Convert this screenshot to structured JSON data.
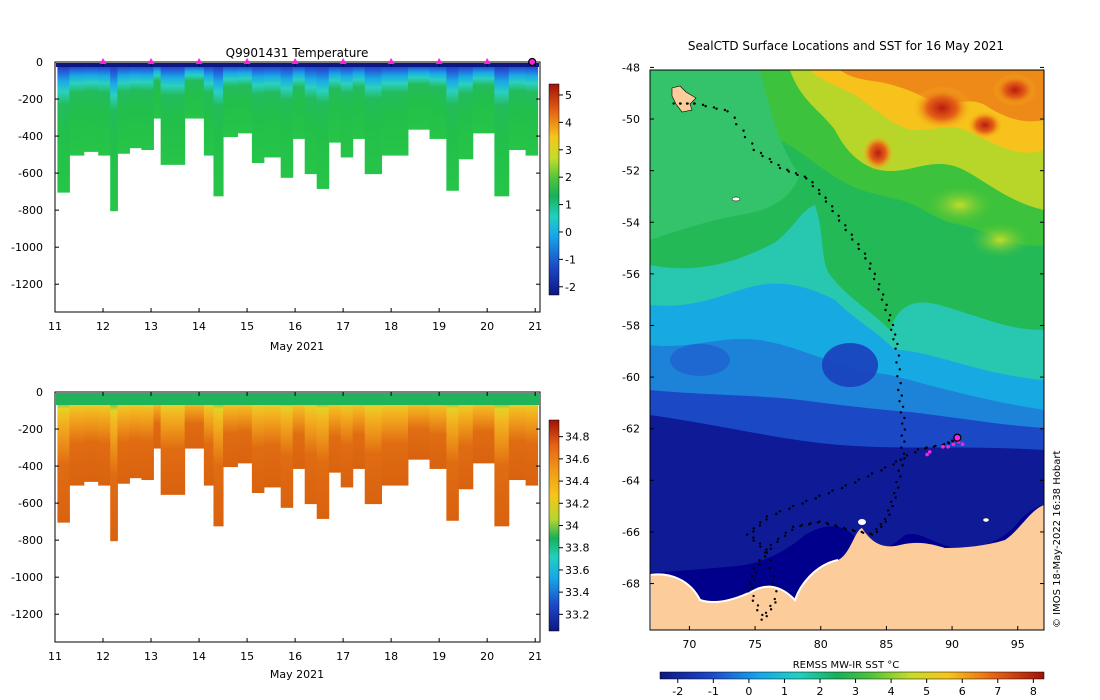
{
  "chart_data": [
    {
      "type": "heatmap",
      "title": "Q9901431  Temperature",
      "xlabel": "May 2021",
      "xticks": [
        "11",
        "12",
        "13",
        "14",
        "15",
        "16",
        "17",
        "18",
        "19",
        "20",
        "21"
      ],
      "xlim": [
        11,
        21.1
      ],
      "ylim": [
        0,
        -1350
      ],
      "yticks": [
        "0",
        "-200",
        "-400",
        "-600",
        "-800",
        "-1000",
        "-1200"
      ],
      "colorbar": {
        "ticks": [
          "5",
          "4",
          "3",
          "2",
          "1",
          "0",
          "-1",
          "-2"
        ],
        "range": [
          -2.3,
          5.4
        ]
      },
      "profile_markers_day": [
        12,
        13,
        14,
        15,
        16,
        17,
        18,
        19,
        20,
        21
      ],
      "profiles": [
        {
          "t": 11.05,
          "depth": 700
        },
        {
          "t": 11.3,
          "depth": 500
        },
        {
          "t": 11.6,
          "depth": 480
        },
        {
          "t": 11.9,
          "depth": 500
        },
        {
          "t": 12.15,
          "depth": 800
        },
        {
          "t": 12.3,
          "depth": 490
        },
        {
          "t": 12.55,
          "depth": 460
        },
        {
          "t": 12.8,
          "depth": 470
        },
        {
          "t": 13.05,
          "depth": 300
        },
        {
          "t": 13.2,
          "depth": 550
        },
        {
          "t": 13.7,
          "depth": 300
        },
        {
          "t": 14.1,
          "depth": 500
        },
        {
          "t": 14.3,
          "depth": 720
        },
        {
          "t": 14.5,
          "depth": 400
        },
        {
          "t": 14.8,
          "depth": 380
        },
        {
          "t": 15.1,
          "depth": 540
        },
        {
          "t": 15.35,
          "depth": 510
        },
        {
          "t": 15.7,
          "depth": 620
        },
        {
          "t": 15.95,
          "depth": 410
        },
        {
          "t": 16.2,
          "depth": 600
        },
        {
          "t": 16.45,
          "depth": 680
        },
        {
          "t": 16.7,
          "depth": 430
        },
        {
          "t": 16.95,
          "depth": 510
        },
        {
          "t": 17.2,
          "depth": 410
        },
        {
          "t": 17.45,
          "depth": 600
        },
        {
          "t": 17.8,
          "depth": 500
        },
        {
          "t": 18.35,
          "depth": 360
        },
        {
          "t": 18.8,
          "depth": 410
        },
        {
          "t": 19.15,
          "depth": 690
        },
        {
          "t": 19.4,
          "depth": 520
        },
        {
          "t": 19.7,
          "depth": 380
        },
        {
          "t": 20.15,
          "depth": 720
        },
        {
          "t": 20.45,
          "depth": 470
        },
        {
          "t": 20.8,
          "depth": 500
        }
      ]
    },
    {
      "type": "heatmap",
      "title": "",
      "xlabel": "May 2021",
      "xticks": [
        "11",
        "12",
        "13",
        "14",
        "15",
        "16",
        "17",
        "18",
        "19",
        "20",
        "21"
      ],
      "xlim": [
        11,
        21.1
      ],
      "ylim": [
        0,
        -1350
      ],
      "yticks": [
        "0",
        "-200",
        "-400",
        "-600",
        "-800",
        "-1000",
        "-1200"
      ],
      "colorbar": {
        "ticks": [
          "34.8",
          "34.6",
          "34.4",
          "34.2",
          "34",
          "33.8",
          "33.6",
          "33.4",
          "33.2"
        ],
        "range": [
          33.05,
          34.95
        ]
      }
    },
    {
      "type": "heatmap",
      "title": "SealCTD Surface Locations and SST for 16 May 2021",
      "xticks": [
        "70",
        "75",
        "80",
        "85",
        "90",
        "95"
      ],
      "xlim": [
        67,
        97
      ],
      "yticks": [
        "-48",
        "-50",
        "-52",
        "-54",
        "-56",
        "-58",
        "-60",
        "-62",
        "-64",
        "-66",
        "-68"
      ],
      "ylim": [
        -48.1,
        -69.8
      ],
      "colorbar_label": "REMSS MW-IR SST °C",
      "colorbar": {
        "ticks": [
          "-2",
          "-1",
          "0",
          "1",
          "2",
          "3",
          "4",
          "5",
          "6",
          "7",
          "8"
        ],
        "range": [
          -2.5,
          8.3
        ]
      },
      "credit": "© IMOS 18-May-2022 16:38 Hobart",
      "latest_position": {
        "lon": 90.4,
        "lat": -62.35
      }
    }
  ],
  "colors": {
    "marker": "#ff22dd",
    "land": "#fccc9a",
    "ice": "#00008c"
  }
}
